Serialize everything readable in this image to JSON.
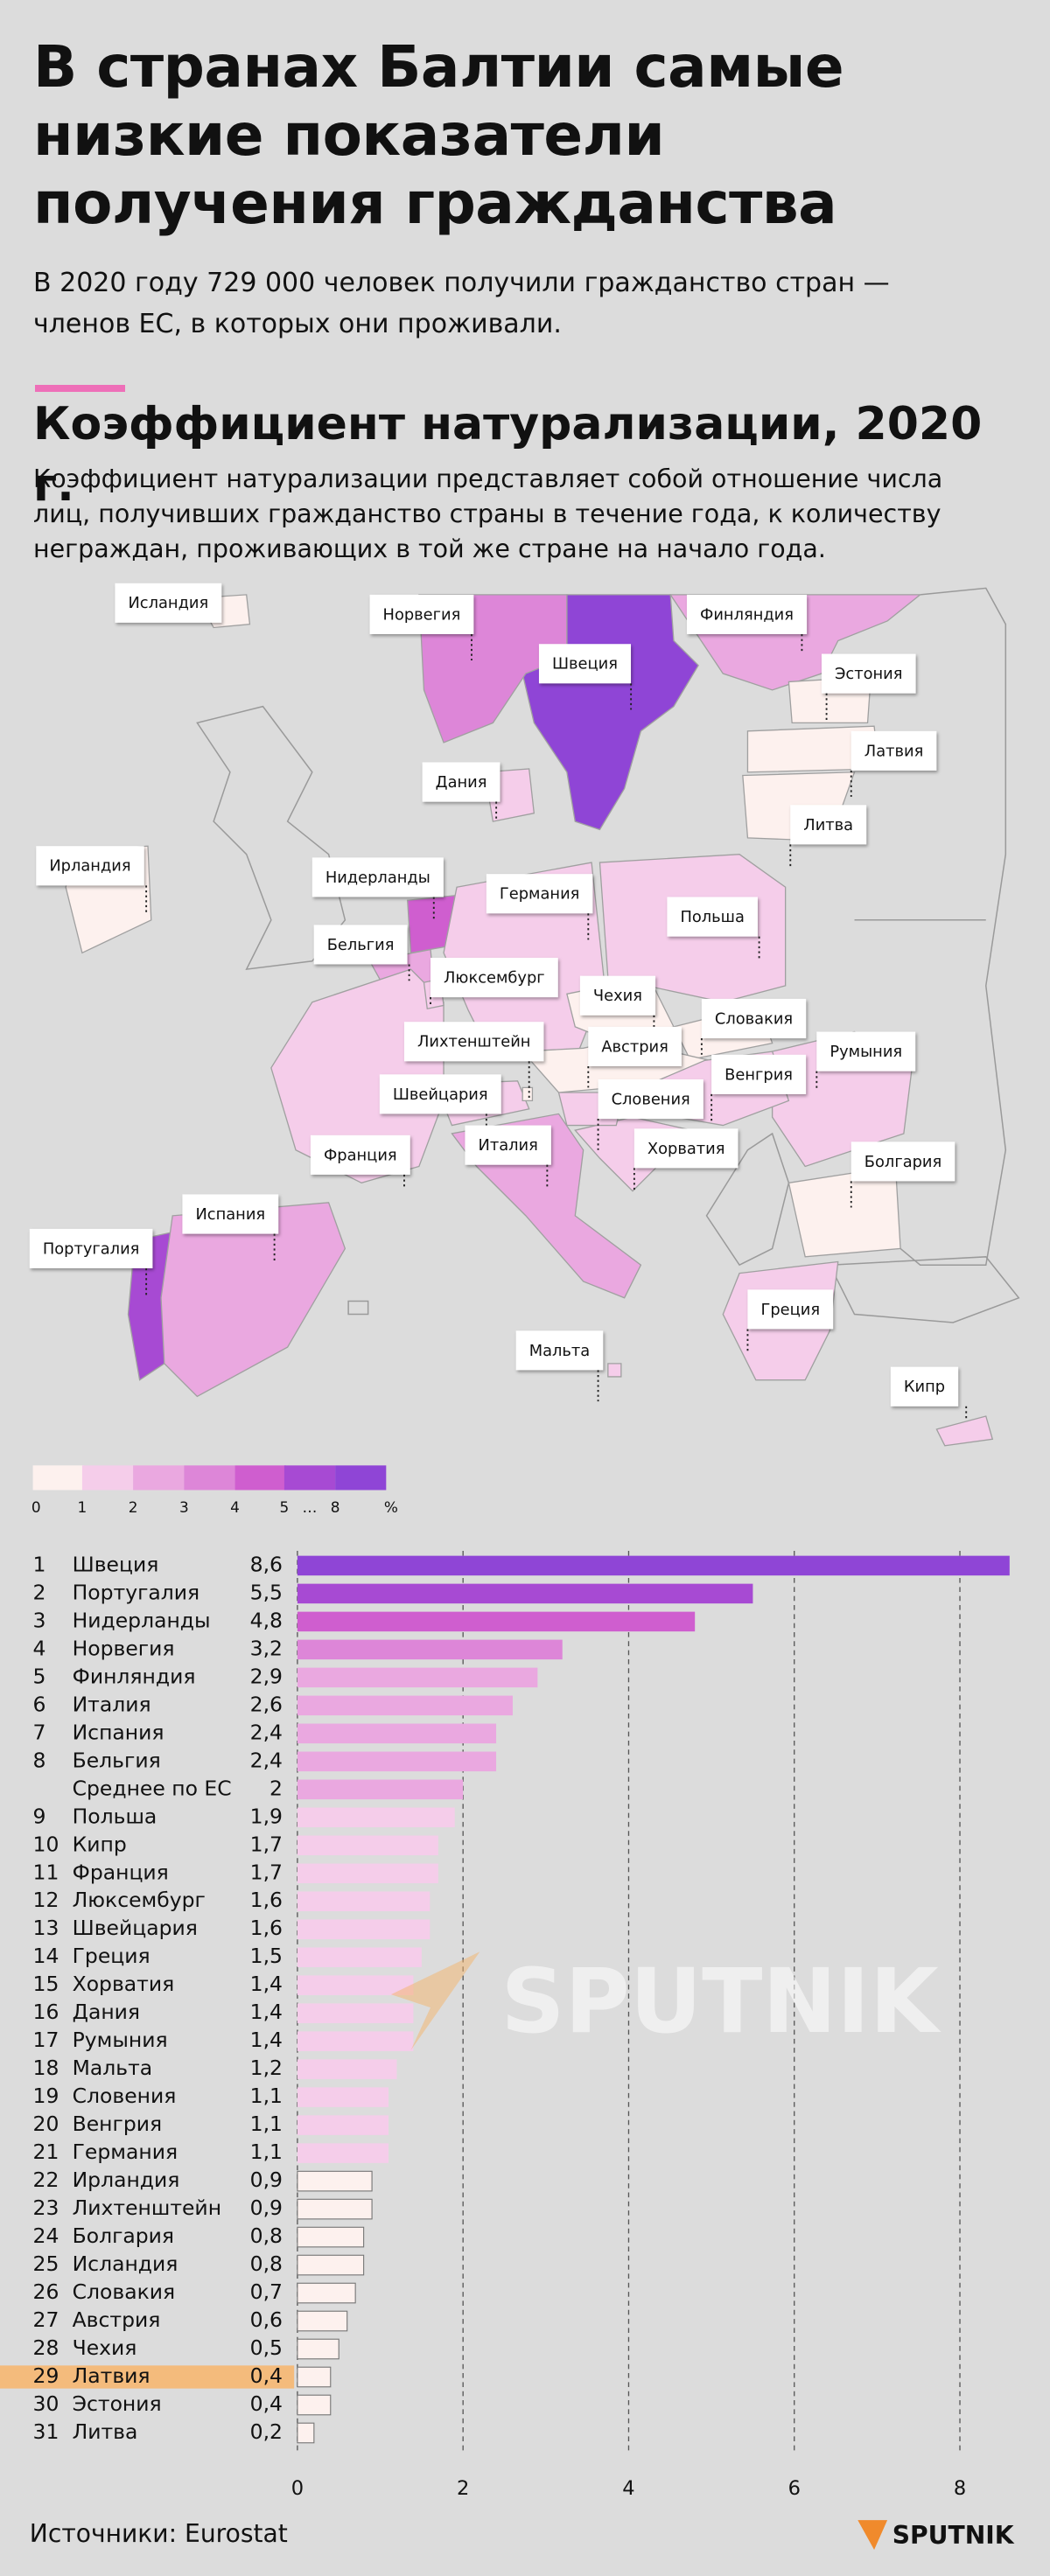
{
  "header": {
    "title": "В странах Балтии самые низкие показатели получения гражданства",
    "subtitle": "В 2020 году 729 000 человек получили гражданство стран — членов ЕС, в которых они проживали.",
    "section_title": "Коэффициент натурализации, 2020 г.",
    "description": "Коэффициент натурализации представляет собой отношение числа лиц, получивших гражданство страны в течение года, к количеству неграждан, проживающих в той же стране на начало года."
  },
  "chart_data": {
    "type": "bar",
    "orientation": "horizontal",
    "ranks": [
      1,
      2,
      3,
      4,
      5,
      6,
      7,
      8,
      null,
      9,
      10,
      11,
      12,
      13,
      14,
      15,
      16,
      17,
      18,
      19,
      20,
      21,
      22,
      23,
      24,
      25,
      26,
      27,
      28,
      29,
      30,
      31
    ],
    "categories": [
      "Швеция",
      "Португалия",
      "Нидерланды",
      "Норвегия",
      "Финляндия",
      "Италия",
      "Испания",
      "Бельгия",
      "Среднее по ЕС",
      "Польша",
      "Кипр",
      "Франция",
      "Люксембург",
      "Швейцария",
      "Греция",
      "Хорватия",
      "Дания",
      "Румыния",
      "Мальта",
      "Словения",
      "Венгрия",
      "Германия",
      "Ирландия",
      "Лихтенштейн",
      "Болгария",
      "Исландия",
      "Словакия",
      "Австрия",
      "Чехия",
      "Латвия",
      "Эстония",
      "Литва"
    ],
    "values": [
      8.6,
      5.5,
      4.8,
      3.2,
      2.9,
      2.6,
      2.4,
      2.4,
      2,
      1.9,
      1.7,
      1.7,
      1.6,
      1.6,
      1.5,
      1.4,
      1.4,
      1.4,
      1.2,
      1.1,
      1.1,
      1.1,
      0.9,
      0.9,
      0.8,
      0.8,
      0.7,
      0.6,
      0.5,
      0.4,
      0.4,
      0.2
    ],
    "value_labels": [
      "8,6",
      "5,5",
      "4,8",
      "3,2",
      "2,9",
      "2,6",
      "2,4",
      "2,4",
      "2",
      "1,9",
      "1,7",
      "1,7",
      "1,6",
      "1,6",
      "1,5",
      "1,4",
      "1,4",
      "1,4",
      "1,2",
      "1,1",
      "1,1",
      "1,1",
      "0,9",
      "0,9",
      "0,8",
      "0,8",
      "0,7",
      "0,6",
      "0,5",
      "0,4",
      "0,4",
      "0,2"
    ],
    "xlim": [
      0,
      8.6
    ],
    "xticks": [
      0,
      2,
      4,
      6,
      8
    ],
    "grid": true,
    "highlight": "Латвия",
    "highlight_color": "#f4bb7c",
    "legend": {
      "ticks": [
        0,
        1,
        2,
        3,
        4,
        5,
        8
      ],
      "ellipsis": "…",
      "unit": "%",
      "colors": [
        "#fdf1ee",
        "#f5cdea",
        "#eaa8e0",
        "#dd86d8",
        "#cf5ecf",
        "#a74ad3",
        "#8f45d6"
      ]
    }
  },
  "watermark": "SPUTNIK",
  "source": "Источники: Eurostat",
  "logo": "SPUTNIK"
}
